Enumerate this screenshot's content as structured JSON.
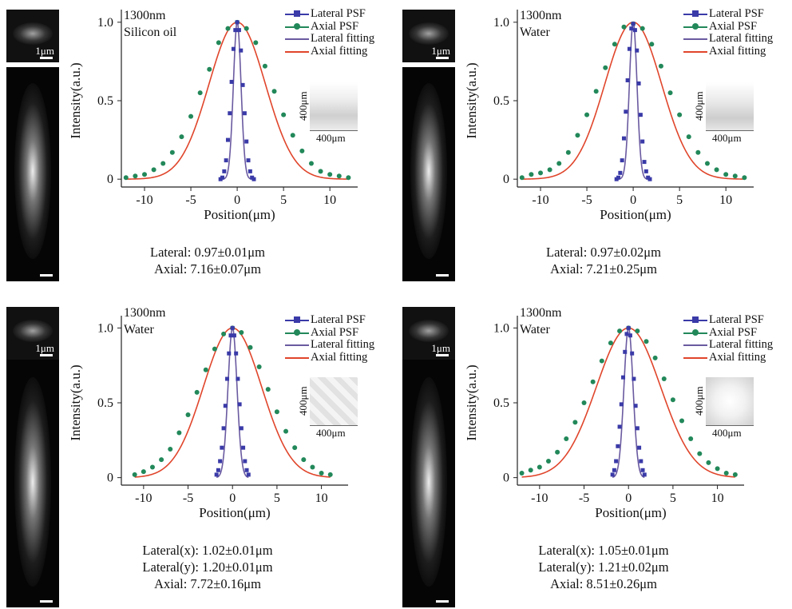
{
  "scale_bar_label": "1μm",
  "inset_label": "400μm",
  "legend": [
    {
      "label": "Lateral PSF",
      "color": "#3a3aa8",
      "marker": "square"
    },
    {
      "label": "Axial PSF",
      "color": "#22885a",
      "marker": "circle"
    },
    {
      "label": "Lateral fitting",
      "color": "#6a5aa0",
      "marker": "none"
    },
    {
      "label": "Axial fitting",
      "color": "#e0452b",
      "marker": "none"
    }
  ],
  "panels": [
    {
      "annotation": [
        "1300nm",
        "Silicon oil"
      ],
      "summary": [
        "Lateral: 0.97±0.01μm",
        "Axial: 7.16±0.07μm"
      ]
    },
    {
      "annotation": [
        "1300nm",
        "Water"
      ],
      "summary": [
        "Lateral: 0.97±0.02μm",
        "Axial: 7.21±0.25μm"
      ]
    },
    {
      "annotation": [
        "1300nm",
        "Water"
      ],
      "summary": [
        "Lateral(x): 1.02±0.01μm",
        "Lateral(y): 1.20±0.01μm",
        "Axial: 7.72±0.16μm"
      ]
    },
    {
      "annotation": [
        "1300nm",
        "Water"
      ],
      "summary": [
        "Lateral(x): 1.05±0.01μm",
        "Lateral(y): 1.21±0.02μm",
        "Axial: 8.51±0.26μm"
      ]
    }
  ],
  "chart_data": [
    {
      "type": "scatter",
      "xlabel": "Position(μm)",
      "ylabel": "Intensity(a.u.)",
      "xlim": [
        -12.5,
        13
      ],
      "ylim": [
        -0.05,
        1.05
      ],
      "xticks": [
        -10,
        -5,
        0,
        5,
        10
      ],
      "yticks": [
        0,
        0.5,
        1.0
      ],
      "ytick_labels": [
        "0",
        "0.5",
        "1.0"
      ],
      "series": [
        {
          "name": "Lateral PSF",
          "fwhm": 0.97,
          "x": [
            -1.8,
            -1.6,
            -1.4,
            -1.2,
            -1.0,
            -0.8,
            -0.6,
            -0.4,
            -0.2,
            0,
            0.2,
            0.4,
            0.6,
            0.8,
            1.0,
            1.2,
            1.4,
            1.6,
            1.8
          ],
          "y": [
            0.0,
            0.01,
            0.05,
            0.12,
            0.25,
            0.42,
            0.62,
            0.83,
            0.95,
            1.0,
            0.95,
            0.82,
            0.6,
            0.42,
            0.24,
            0.12,
            0.05,
            0.01,
            0.0
          ]
        },
        {
          "name": "Axial PSF",
          "fwhm": 7.16,
          "x": [
            -12,
            -11,
            -10,
            -9,
            -8,
            -7,
            -6,
            -5,
            -4,
            -3,
            -2,
            -1,
            0,
            1,
            2,
            3,
            4,
            5,
            6,
            7,
            8,
            9,
            10,
            11,
            12
          ],
          "y": [
            0.01,
            0.02,
            0.03,
            0.06,
            0.1,
            0.17,
            0.27,
            0.4,
            0.55,
            0.7,
            0.87,
            0.96,
            1.0,
            0.96,
            0.87,
            0.72,
            0.56,
            0.41,
            0.28,
            0.18,
            0.1,
            0.05,
            0.03,
            0.02,
            0.01
          ]
        },
        {
          "name": "Lateral fitting",
          "fwhm": 0.97,
          "center": 0
        },
        {
          "name": "Axial fitting",
          "fwhm": 7.16,
          "center": 0
        }
      ]
    },
    {
      "type": "scatter",
      "xlabel": "Position(μm)",
      "ylabel": "Intensity(a.u.)",
      "xlim": [
        -12.5,
        13
      ],
      "ylim": [
        -0.05,
        1.05
      ],
      "xticks": [
        -10,
        -5,
        0,
        5,
        10
      ],
      "yticks": [
        0,
        0.5,
        1.0
      ],
      "ytick_labels": [
        "0",
        "0.5",
        "1.0"
      ],
      "series": [
        {
          "name": "Lateral PSF",
          "fwhm": 0.97,
          "x": [
            -1.8,
            -1.6,
            -1.4,
            -1.2,
            -1.0,
            -0.8,
            -0.6,
            -0.4,
            -0.2,
            0,
            0.2,
            0.4,
            0.6,
            0.8,
            1.0,
            1.2,
            1.4,
            1.6,
            1.8
          ],
          "y": [
            0.0,
            0.01,
            0.04,
            0.12,
            0.26,
            0.43,
            0.63,
            0.83,
            0.96,
            0.99,
            0.95,
            0.82,
            0.61,
            0.41,
            0.24,
            0.11,
            0.05,
            0.01,
            0.0
          ]
        },
        {
          "name": "Axial PSF",
          "fwhm": 7.21,
          "x": [
            -12,
            -11,
            -10,
            -9,
            -8,
            -7,
            -6,
            -5,
            -4,
            -3,
            -2,
            -1,
            0,
            1,
            2,
            3,
            4,
            5,
            6,
            7,
            8,
            9,
            10,
            11,
            12
          ],
          "y": [
            0.01,
            0.03,
            0.04,
            0.06,
            0.1,
            0.17,
            0.28,
            0.41,
            0.56,
            0.71,
            0.86,
            0.97,
            0.99,
            0.96,
            0.86,
            0.72,
            0.55,
            0.41,
            0.27,
            0.17,
            0.1,
            0.06,
            0.03,
            0.02,
            0.01
          ]
        },
        {
          "name": "Lateral fitting",
          "fwhm": 0.97,
          "center": 0
        },
        {
          "name": "Axial fitting",
          "fwhm": 7.21,
          "center": 0
        }
      ]
    },
    {
      "type": "scatter",
      "xlabel": "Position(μm)",
      "ylabel": "Intensity(a.u.)",
      "xlim": [
        -12.5,
        13
      ],
      "ylim": [
        -0.05,
        1.05
      ],
      "xticks": [
        -10,
        -5,
        0,
        5,
        10
      ],
      "yticks": [
        0,
        0.5,
        1.0
      ],
      "ytick_labels": [
        "0",
        "0.5",
        "1.0"
      ],
      "series": [
        {
          "name": "Lateral PSF",
          "fwhm": 1.2,
          "x": [
            -1.8,
            -1.6,
            -1.4,
            -1.2,
            -1.0,
            -0.8,
            -0.6,
            -0.4,
            -0.2,
            0,
            0.2,
            0.4,
            0.6,
            0.8,
            1.0,
            1.2,
            1.4,
            1.6,
            1.8
          ],
          "y": [
            0.02,
            0.05,
            0.11,
            0.2,
            0.33,
            0.48,
            0.66,
            0.83,
            0.95,
            1.0,
            0.95,
            0.83,
            0.66,
            0.49,
            0.33,
            0.2,
            0.11,
            0.05,
            0.02
          ]
        },
        {
          "name": "Axial PSF",
          "fwhm": 7.72,
          "x": [
            -11,
            -10,
            -9,
            -8,
            -7,
            -6,
            -5,
            -4,
            -3,
            -2,
            -1,
            0,
            1,
            2,
            3,
            4,
            5,
            6,
            7,
            8,
            9,
            10,
            11
          ],
          "y": [
            0.02,
            0.04,
            0.07,
            0.12,
            0.19,
            0.3,
            0.42,
            0.57,
            0.72,
            0.86,
            0.96,
            1.0,
            0.97,
            0.87,
            0.74,
            0.59,
            0.44,
            0.31,
            0.2,
            0.12,
            0.07,
            0.03,
            0.02
          ]
        },
        {
          "name": "Lateral fitting",
          "fwhm": 1.2,
          "center": 0
        },
        {
          "name": "Axial fitting",
          "fwhm": 7.72,
          "center": 0
        }
      ]
    },
    {
      "type": "scatter",
      "xlabel": "Position(μm)",
      "ylabel": "Intensity(a.u.)",
      "xlim": [
        -12.5,
        13
      ],
      "ylim": [
        -0.05,
        1.05
      ],
      "xticks": [
        -10,
        -5,
        0,
        5,
        10
      ],
      "yticks": [
        0,
        0.5,
        1.0
      ],
      "ytick_labels": [
        "0",
        "0.5",
        "1.0"
      ],
      "series": [
        {
          "name": "Lateral PSF",
          "fwhm": 1.21,
          "x": [
            -1.8,
            -1.6,
            -1.4,
            -1.2,
            -1.0,
            -0.8,
            -0.6,
            -0.4,
            -0.2,
            0,
            0.2,
            0.4,
            0.6,
            0.8,
            1.0,
            1.2,
            1.4,
            1.6,
            1.8
          ],
          "y": [
            0.02,
            0.05,
            0.11,
            0.21,
            0.34,
            0.49,
            0.67,
            0.84,
            0.96,
            1.0,
            0.95,
            0.83,
            0.66,
            0.48,
            0.33,
            0.2,
            0.11,
            0.05,
            0.02
          ]
        },
        {
          "name": "Axial PSF",
          "fwhm": 8.51,
          "x": [
            -12,
            -11,
            -10,
            -9,
            -8,
            -7,
            -6,
            -5,
            -4,
            -3,
            -2,
            -1,
            0,
            1,
            2,
            3,
            4,
            5,
            6,
            7,
            8,
            9,
            10,
            11,
            12
          ],
          "y": [
            0.03,
            0.05,
            0.07,
            0.11,
            0.17,
            0.26,
            0.37,
            0.5,
            0.64,
            0.78,
            0.9,
            0.98,
            1.0,
            0.98,
            0.91,
            0.8,
            0.66,
            0.52,
            0.38,
            0.26,
            0.16,
            0.1,
            0.06,
            0.03,
            0.02
          ]
        },
        {
          "name": "Lateral fitting",
          "fwhm": 1.21,
          "center": 0
        },
        {
          "name": "Axial fitting",
          "fwhm": 8.51,
          "center": 0
        }
      ]
    }
  ]
}
